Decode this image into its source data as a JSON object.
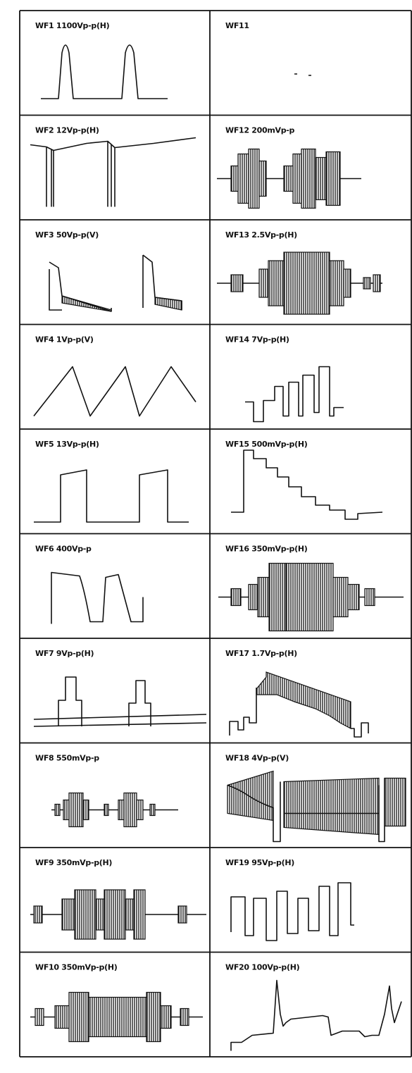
{
  "cells": [
    {
      "label": "WF1 1100Vp-p(H)"
    },
    {
      "label": "WF2 12Vp-p(H)"
    },
    {
      "label": "WF3 50Vp-p(V)"
    },
    {
      "label": "WF4 1Vp-p(V)"
    },
    {
      "label": "WF5 13Vp-p(H)"
    },
    {
      "label": "WF6 400Vp-p"
    },
    {
      "label": "WF7 9Vp-p(H)"
    },
    {
      "label": "WF8 550mVp-p"
    },
    {
      "label": "WF9 350mVp-p(H)"
    },
    {
      "label": "WF10 350mVp-p(H)"
    },
    {
      "label": "WF11"
    },
    {
      "label": "WF12 200mVp-p"
    },
    {
      "label": "WF13 2.5Vp-p(H)"
    },
    {
      "label": "WF14 7Vp-p(H)"
    },
    {
      "label": "WF15 500mVp-p(H)"
    },
    {
      "label": "WF16 350mVp-p(H)"
    },
    {
      "label": "WF17 1.7Vp-p(H)"
    },
    {
      "label": "WF18 4Vp-p(V)"
    },
    {
      "label": "WF19 95Vp-p(H)"
    },
    {
      "label": "WF20 100Vp-p(H)"
    }
  ]
}
